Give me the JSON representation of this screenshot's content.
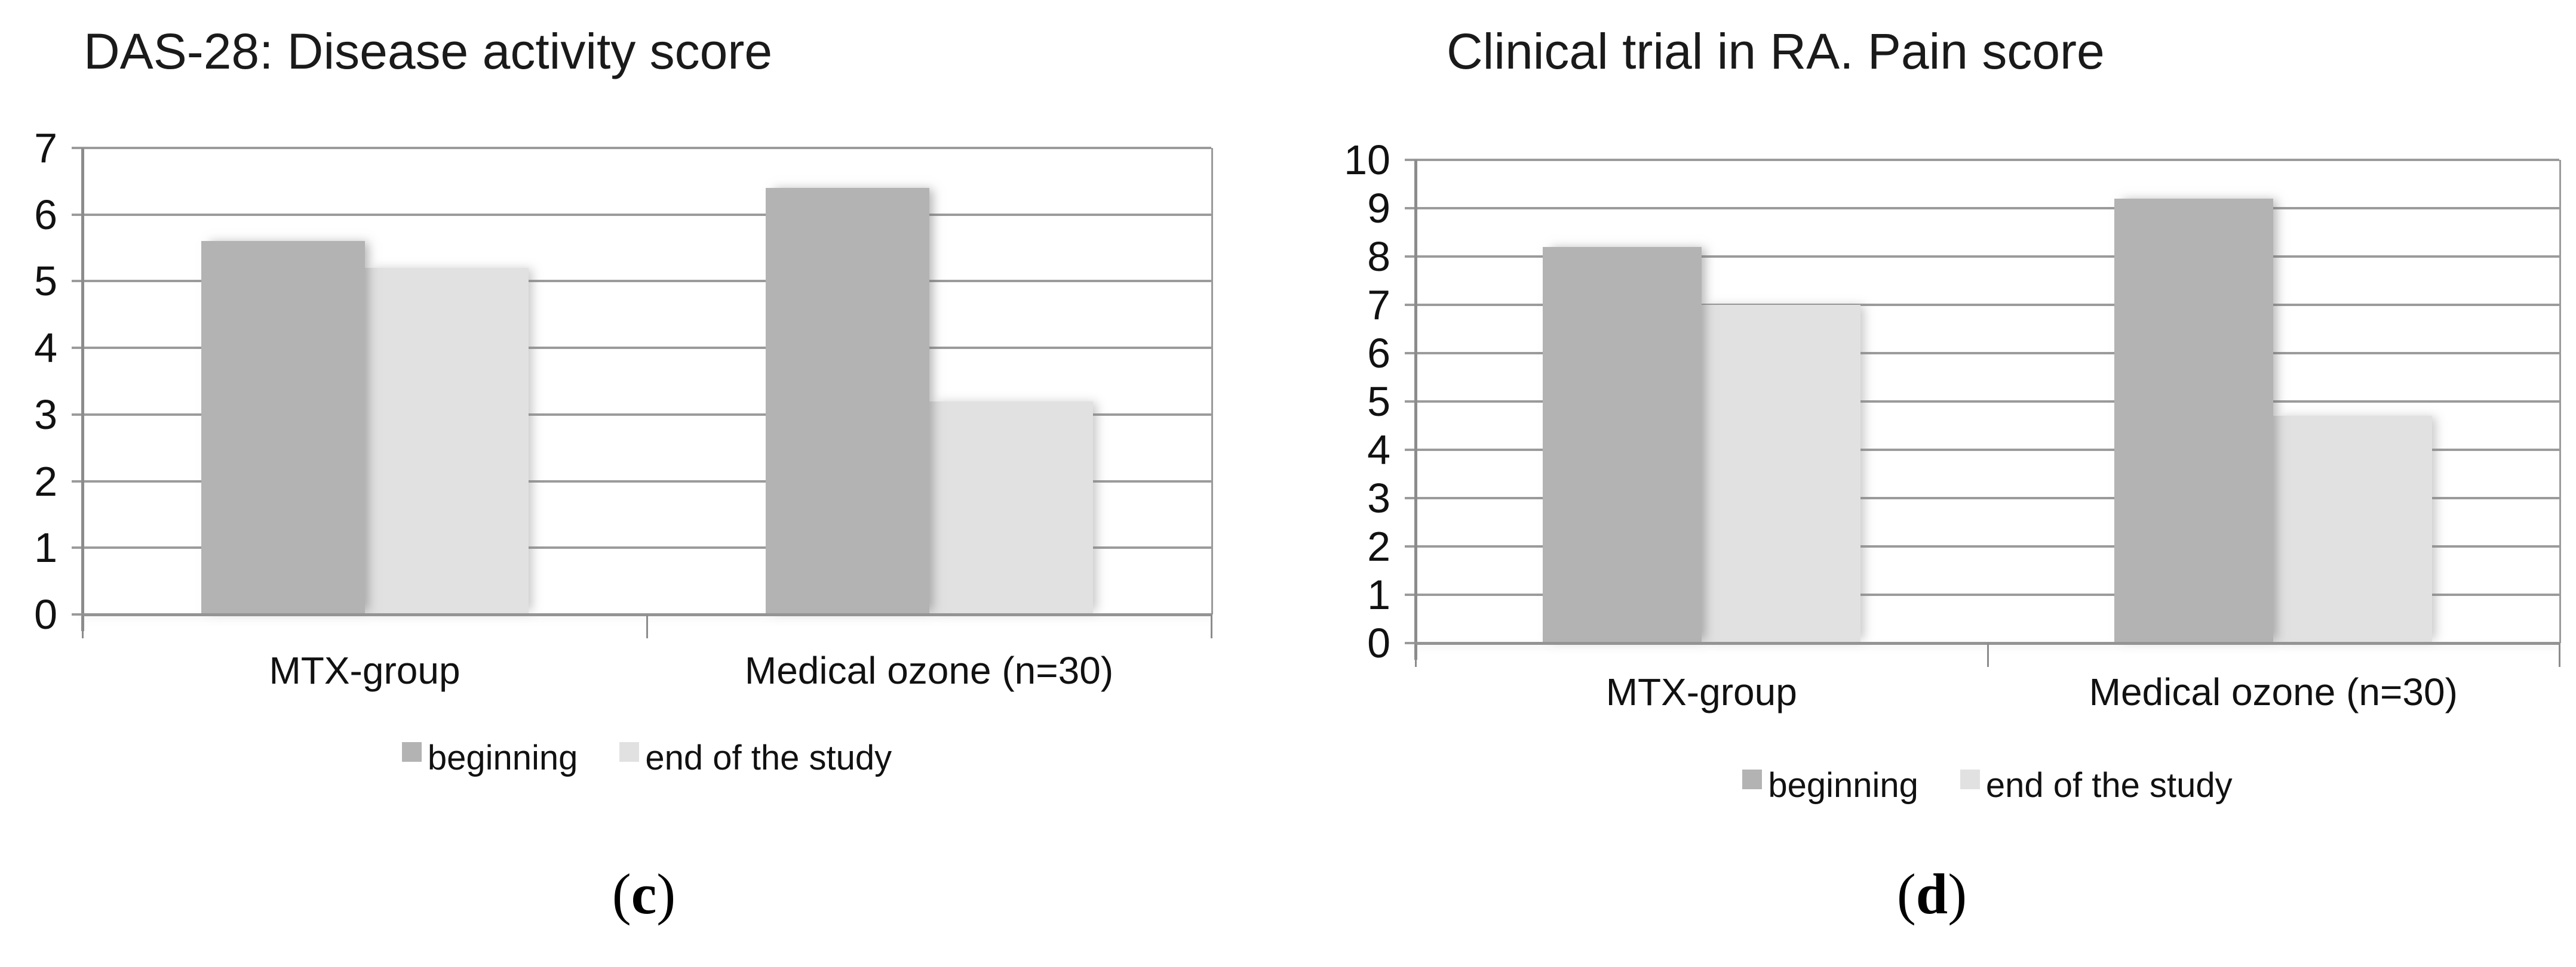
{
  "figure": {
    "background": "#ffffff"
  },
  "colors": {
    "bar_beginning": "#b3b3b3",
    "bar_end_of_study": "#e1e1e1",
    "gridline": "#9b9b9b",
    "axis": "#8c8c8c",
    "text": "#111111"
  },
  "chart_data": [
    {
      "type": "bar",
      "title": "DAS-28: Disease activity score",
      "panel_caption": {
        "prefix": "(",
        "letter": "c",
        "suffix": ")"
      },
      "categories": [
        "MTX-group",
        "Medical ozone (n=30)"
      ],
      "series": [
        {
          "name": "beginning",
          "color": "#b3b3b3",
          "values": [
            5.6,
            6.4
          ]
        },
        {
          "name": "end of the study",
          "color": "#e1e1e1",
          "values": [
            5.2,
            3.2
          ]
        }
      ],
      "xlabel": "",
      "ylabel": "",
      "ylim": [
        0,
        7
      ],
      "yticks": [
        0,
        1,
        2,
        3,
        4,
        5,
        6,
        7
      ],
      "grid": true,
      "legend_position": "bottom"
    },
    {
      "type": "bar",
      "title": "Clinical trial in RA. Pain score",
      "panel_caption": {
        "prefix": "(",
        "letter": "d",
        "suffix": ")"
      },
      "categories": [
        "MTX-group",
        "Medical ozone (n=30)"
      ],
      "series": [
        {
          "name": "beginning",
          "color": "#b3b3b3",
          "values": [
            8.2,
            9.2
          ]
        },
        {
          "name": "end of the study",
          "color": "#e1e1e1",
          "values": [
            7,
            4.7
          ]
        }
      ],
      "xlabel": "",
      "ylabel": "",
      "ylim": [
        0,
        10
      ],
      "yticks": [
        0,
        1,
        2,
        3,
        4,
        5,
        6,
        7,
        8,
        9,
        10
      ],
      "grid": true,
      "legend_position": "bottom"
    }
  ]
}
